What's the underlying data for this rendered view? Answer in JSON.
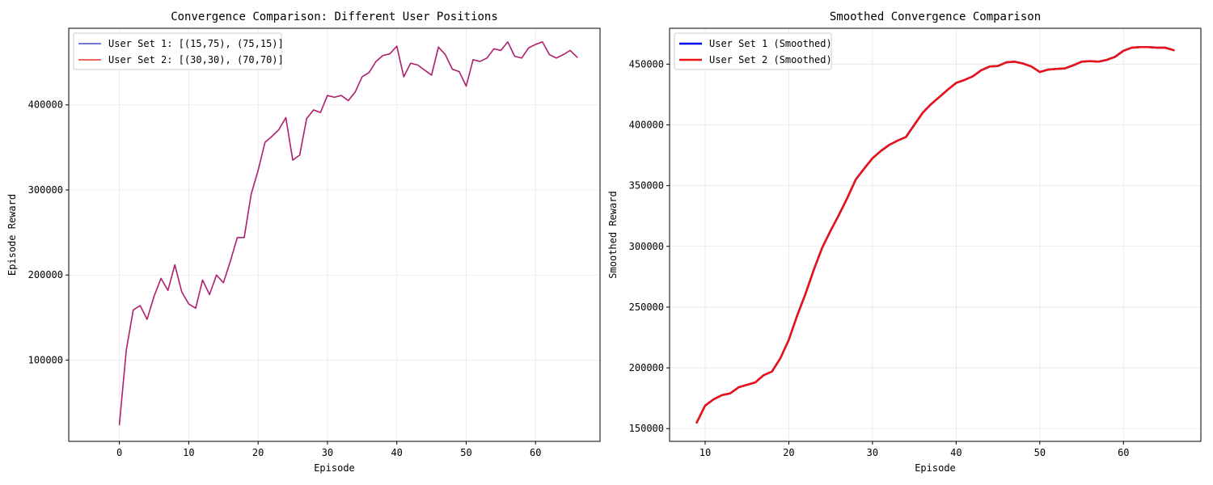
{
  "chart_data": [
    {
      "type": "line",
      "title": "Convergence Comparison: Different User Positions",
      "xlabel": "Episode",
      "ylabel": "Episode Reward",
      "xlim": [
        -7.3,
        69.3
      ],
      "ylim": [
        4500,
        490000
      ],
      "xticks": [
        0,
        10,
        20,
        30,
        40,
        50,
        60
      ],
      "xtick_labels": [
        "0",
        "10",
        "20",
        "30",
        "40",
        "50",
        "60"
      ],
      "yticks": [
        100000,
        200000,
        300000,
        400000
      ],
      "ytick_labels": [
        "100000",
        "200000",
        "300000",
        "400000"
      ],
      "grid": true,
      "legend_position": "top-left",
      "x": [
        0,
        1,
        2,
        3,
        4,
        5,
        6,
        7,
        8,
        9,
        10,
        11,
        12,
        13,
        14,
        15,
        16,
        17,
        18,
        19,
        20,
        21,
        22,
        23,
        24,
        25,
        26,
        27,
        28,
        29,
        30,
        31,
        32,
        33,
        34,
        35,
        36,
        37,
        38,
        39,
        40,
        41,
        42,
        43,
        44,
        45,
        46,
        47,
        48,
        49,
        50,
        51,
        52,
        53,
        54,
        55,
        56,
        57,
        58,
        59,
        60,
        61,
        62,
        63,
        64,
        65,
        66
      ],
      "series": [
        {
          "name": "User Set 1: [(15,75), (75,15)]",
          "color": "#4a4acf",
          "values": [
            24000,
            112000,
            159000,
            164000,
            148000,
            175000,
            196000,
            182000,
            212000,
            180000,
            166000,
            161000,
            194000,
            177000,
            200000,
            191000,
            216000,
            244000,
            244000,
            295000,
            323000,
            356000,
            363000,
            371000,
            385000,
            335000,
            341000,
            384000,
            394000,
            391000,
            411000,
            409000,
            411000,
            405000,
            415000,
            433000,
            438000,
            451000,
            458000,
            460000,
            469000,
            433000,
            449000,
            447000,
            441000,
            435000,
            468000,
            459000,
            442000,
            439000,
            422000,
            453000,
            451000,
            455000,
            466000,
            464000,
            474000,
            457000,
            455000,
            467000,
            471000,
            474000,
            459000,
            455000,
            459000,
            464000,
            456000
          ]
        },
        {
          "name": "User Set 2: [(30,30), (70,70)]",
          "color": "#e8382c",
          "values": [
            24000,
            112000,
            159000,
            164000,
            148000,
            175000,
            196000,
            182000,
            212000,
            180000,
            166000,
            161000,
            194000,
            177000,
            200000,
            191000,
            216000,
            244000,
            244000,
            295000,
            323000,
            356000,
            363000,
            371000,
            385000,
            335000,
            341000,
            384000,
            394000,
            391000,
            411000,
            409000,
            411000,
            405000,
            415000,
            433000,
            438000,
            451000,
            458000,
            460000,
            469000,
            433000,
            449000,
            447000,
            441000,
            435000,
            468000,
            459000,
            442000,
            439000,
            422000,
            453000,
            451000,
            455000,
            466000,
            464000,
            474000,
            457000,
            455000,
            467000,
            471000,
            474000,
            459000,
            455000,
            459000,
            464000,
            456000
          ]
        }
      ],
      "overlap_color": "#c2185b"
    },
    {
      "type": "line",
      "title": "Smoothed Convergence Comparison",
      "xlabel": "Episode",
      "ylabel": "Smoothed Reward",
      "xlim": [
        5.75,
        69.25
      ],
      "ylim": [
        139500,
        479500
      ],
      "xticks": [
        10,
        20,
        30,
        40,
        50,
        60
      ],
      "xtick_labels": [
        "10",
        "20",
        "30",
        "40",
        "50",
        "60"
      ],
      "yticks": [
        150000,
        200000,
        250000,
        300000,
        350000,
        400000,
        450000
      ],
      "ytick_labels": [
        "150000",
        "200000",
        "250000",
        "300000",
        "350000",
        "400000",
        "450000"
      ],
      "grid": true,
      "legend_position": "top-left",
      "x": [
        9,
        10,
        11,
        12,
        13,
        14,
        15,
        16,
        17,
        18,
        19,
        20,
        21,
        22,
        23,
        24,
        25,
        26,
        27,
        28,
        29,
        30,
        31,
        32,
        33,
        34,
        35,
        36,
        37,
        38,
        39,
        40,
        41,
        42,
        43,
        44,
        45,
        46,
        47,
        48,
        49,
        50,
        51,
        52,
        53,
        54,
        55,
        56,
        57,
        58,
        59,
        60,
        61,
        62,
        63,
        64,
        65,
        66
      ],
      "series": [
        {
          "name": "User Set 1 (Smoothed)",
          "color": "#0000ee",
          "values": [
            155000,
            169000,
            174000,
            177500,
            179000,
            184000,
            186000,
            188000,
            194000,
            197000,
            208000,
            223000,
            243000,
            261000,
            281000,
            299000,
            313000,
            326000,
            340000,
            355000,
            364000,
            372500,
            378500,
            383500,
            387000,
            390000,
            400000,
            410000,
            417000,
            423000,
            429000,
            434500,
            437000,
            440000,
            445000,
            448000,
            448500,
            451500,
            452000,
            450500,
            448000,
            443500,
            445500,
            446000,
            446500,
            449000,
            452000,
            452500,
            452000,
            453500,
            456000,
            461000,
            463500,
            464000,
            464000,
            463500,
            463500,
            461500
          ]
        },
        {
          "name": "User Set 2 (Smoothed)",
          "color": "#ee1111",
          "values": [
            155000,
            169000,
            174000,
            177500,
            179000,
            184000,
            186000,
            188000,
            194000,
            197000,
            208000,
            223000,
            243000,
            261000,
            281000,
            299000,
            313000,
            326000,
            340000,
            355000,
            364000,
            372500,
            378500,
            383500,
            387000,
            390000,
            400000,
            410000,
            417000,
            423000,
            429000,
            434500,
            437000,
            440000,
            445000,
            448000,
            448500,
            451500,
            452000,
            450500,
            448000,
            443500,
            445500,
            446000,
            446500,
            449000,
            452000,
            452500,
            452000,
            453500,
            456000,
            461000,
            463500,
            464000,
            464000,
            463500,
            463500,
            461500
          ]
        }
      ]
    }
  ]
}
